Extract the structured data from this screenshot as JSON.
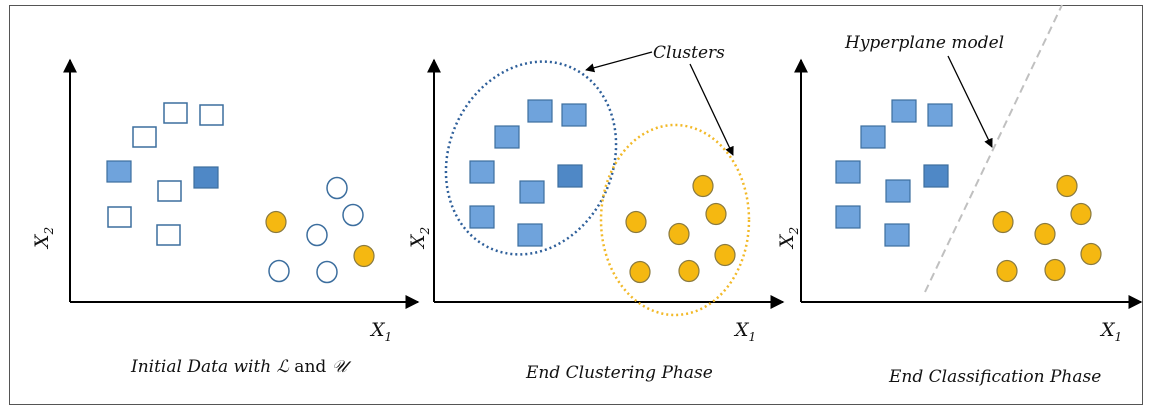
{
  "colors": {
    "labeled_blue": "#6fa3dc",
    "labeled_blue_dark": "#4f88c6",
    "unlabeled_stroke": "#3c6e9e",
    "orange": "#f5b811",
    "orange_stroke": "#8a7a40",
    "cluster_blue": "#2e5f9a",
    "cluster_orange": "#f2b928",
    "hyperplane": "#c0c0c0"
  },
  "panels": [
    {
      "x_label": "X",
      "x_sub": "1",
      "y_label": "X",
      "y_sub": "2",
      "caption_prefix": "Initial Data with ",
      "caption_L": "ℒ",
      "caption_and": " and ",
      "caption_U": "𝒰"
    },
    {
      "x_label": "X",
      "x_sub": "1",
      "y_label": "X",
      "y_sub": "2",
      "caption": "End Clustering Phase",
      "annotation": "Clusters"
    },
    {
      "x_label": "X",
      "x_sub": "1",
      "y_label": "X",
      "y_sub": "2",
      "caption": "End Classification Phase",
      "annotation": "Hyperplane model"
    }
  ]
}
